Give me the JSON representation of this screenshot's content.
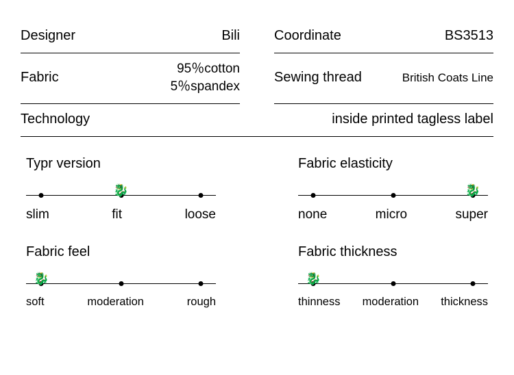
{
  "specs": {
    "designer": {
      "label": "Designer",
      "value": "Bili"
    },
    "coordinate": {
      "label": "Coordinate",
      "value": "BS3513"
    },
    "fabric": {
      "label": "Fabric",
      "value_line1": "95％cotton",
      "value_line2": "5％spandex"
    },
    "sewing_thread": {
      "label": "Sewing thread",
      "value": "British Coats Line"
    },
    "technology": {
      "label": "Technology",
      "value": "inside printed tagless label"
    }
  },
  "sliders": {
    "type_version": {
      "title": "Typr version",
      "options": [
        "slim",
        "fit",
        "loose"
      ],
      "dot_positions_pct": [
        8,
        50,
        92
      ],
      "marker_position_pct": 50,
      "marker_glyph": "🐉",
      "label_fontsize_class": ""
    },
    "fabric_elasticity": {
      "title": "Fabric elasticity",
      "options": [
        "none",
        "micro",
        "super"
      ],
      "dot_positions_pct": [
        8,
        50,
        92
      ],
      "marker_position_pct": 92,
      "marker_glyph": "🐉",
      "label_fontsize_class": ""
    },
    "fabric_feel": {
      "title": "Fabric feel",
      "options": [
        "soft",
        "moderation",
        "rough"
      ],
      "dot_positions_pct": [
        8,
        50,
        92
      ],
      "marker_position_pct": 8,
      "marker_glyph": "🐉",
      "label_fontsize_class": "small"
    },
    "fabric_thickness": {
      "title": "Fabric thickness",
      "options": [
        "thinness",
        "moderation",
        "thickness"
      ],
      "dot_positions_pct": [
        8,
        50,
        92
      ],
      "marker_position_pct": 8,
      "marker_glyph": "🐉",
      "label_fontsize_class": "small"
    }
  },
  "style": {
    "line_color": "#000000",
    "background_color": "#ffffff"
  }
}
